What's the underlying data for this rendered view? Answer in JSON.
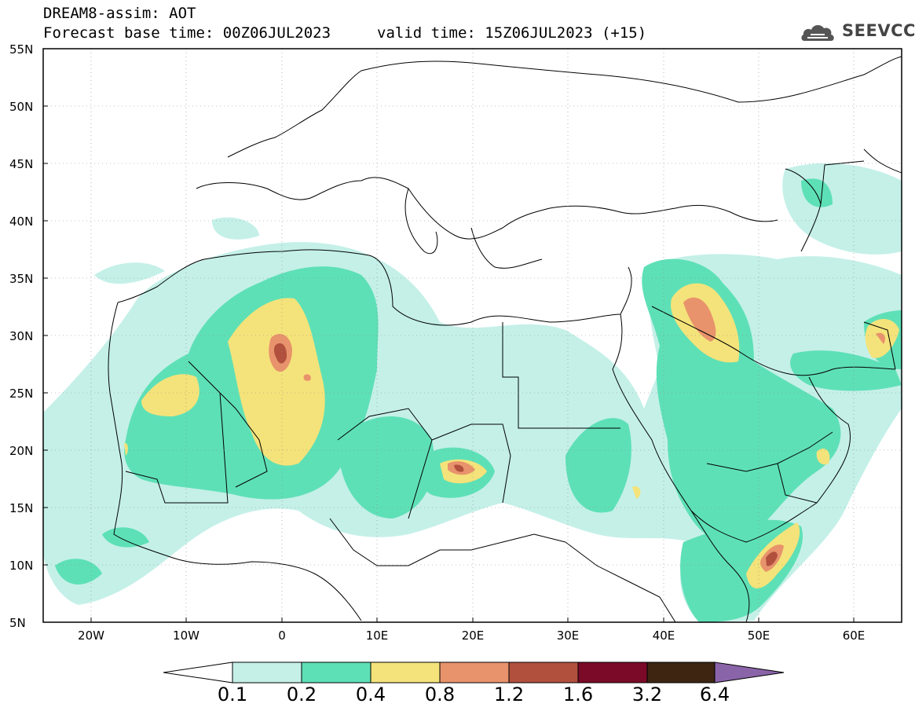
{
  "header": {
    "line1": "DREAM8-assim: AOT",
    "line2": "Forecast base time: 00Z06JUL2023",
    "line3": "valid time: 15Z06JUL2023 (+15)"
  },
  "logo": {
    "text": "SEEVCCC",
    "icon": "cloud-logo-icon"
  },
  "map": {
    "projection": "equirectangular",
    "lon_range": [
      -25,
      65
    ],
    "lat_range": [
      5,
      55
    ],
    "lat_ticks": [
      "55N",
      "50N",
      "45N",
      "40N",
      "35N",
      "30N",
      "25N",
      "20N",
      "15N",
      "10N",
      "5N"
    ],
    "lon_ticks": [
      "20W",
      "10W",
      "0",
      "10E",
      "20E",
      "30E",
      "40E",
      "50E",
      "60E"
    ],
    "grid": "dotted"
  },
  "colorbar": {
    "labels": [
      "0.1",
      "0.2",
      "0.4",
      "0.8",
      "1.2",
      "1.6",
      "3.2",
      "6.4"
    ],
    "colors": [
      "#c4f0e8",
      "#5ee0b6",
      "#f4e37a",
      "#e8936c",
      "#b2503e",
      "#7a0a28",
      "#3d2512",
      "#8a64a8"
    ],
    "under_color": "#ffffff"
  }
}
